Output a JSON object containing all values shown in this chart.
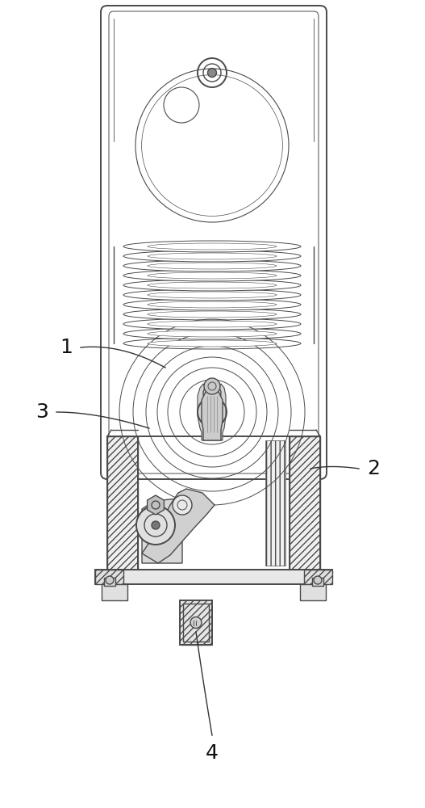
{
  "bg_color": "#ffffff",
  "line_color": "#4a4a4a",
  "figsize": [
    5.27,
    10.0
  ],
  "dpi": 100,
  "labels": [
    "1",
    "2",
    "3",
    "4"
  ],
  "label_fontsize": 18
}
